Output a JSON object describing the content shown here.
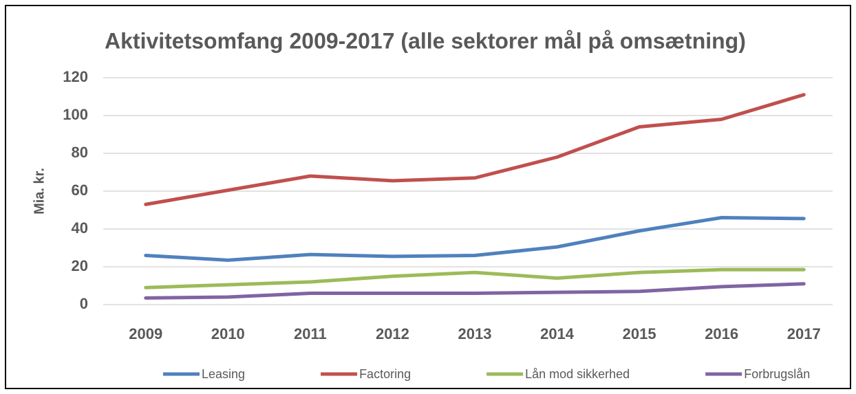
{
  "chart_data": {
    "type": "line",
    "title": "Aktivitetsomfang 2009-2017 (alle sektorer mål på omsætning)",
    "y_label": "Mia. kr.",
    "categories": [
      "2009",
      "2010",
      "2011",
      "2012",
      "2013",
      "2014",
      "2015",
      "2016",
      "2017"
    ],
    "series": [
      {
        "name": "Leasing",
        "color": "#4f81bd",
        "values": [
          26,
          23.5,
          26.5,
          25.5,
          26,
          30.5,
          39,
          46,
          45.5
        ]
      },
      {
        "name": "Factoring",
        "color": "#c0504d",
        "values": [
          53,
          60.5,
          68,
          65.5,
          67,
          78,
          94,
          98,
          111
        ]
      },
      {
        "name": "Lån mod sikkerhed",
        "color": "#9bbb59",
        "values": [
          9,
          10.5,
          12,
          15,
          17,
          14,
          17,
          18.5,
          18.5
        ]
      },
      {
        "name": "Forbrugslån",
        "color": "#8064a2",
        "values": [
          3.5,
          4,
          6,
          6,
          6,
          6.5,
          7,
          9.5,
          11
        ]
      }
    ],
    "ylim": [
      0,
      120
    ],
    "yticks": [
      0,
      20,
      40,
      60,
      80,
      100,
      120
    ],
    "grid": true,
    "legend": "bottom"
  }
}
